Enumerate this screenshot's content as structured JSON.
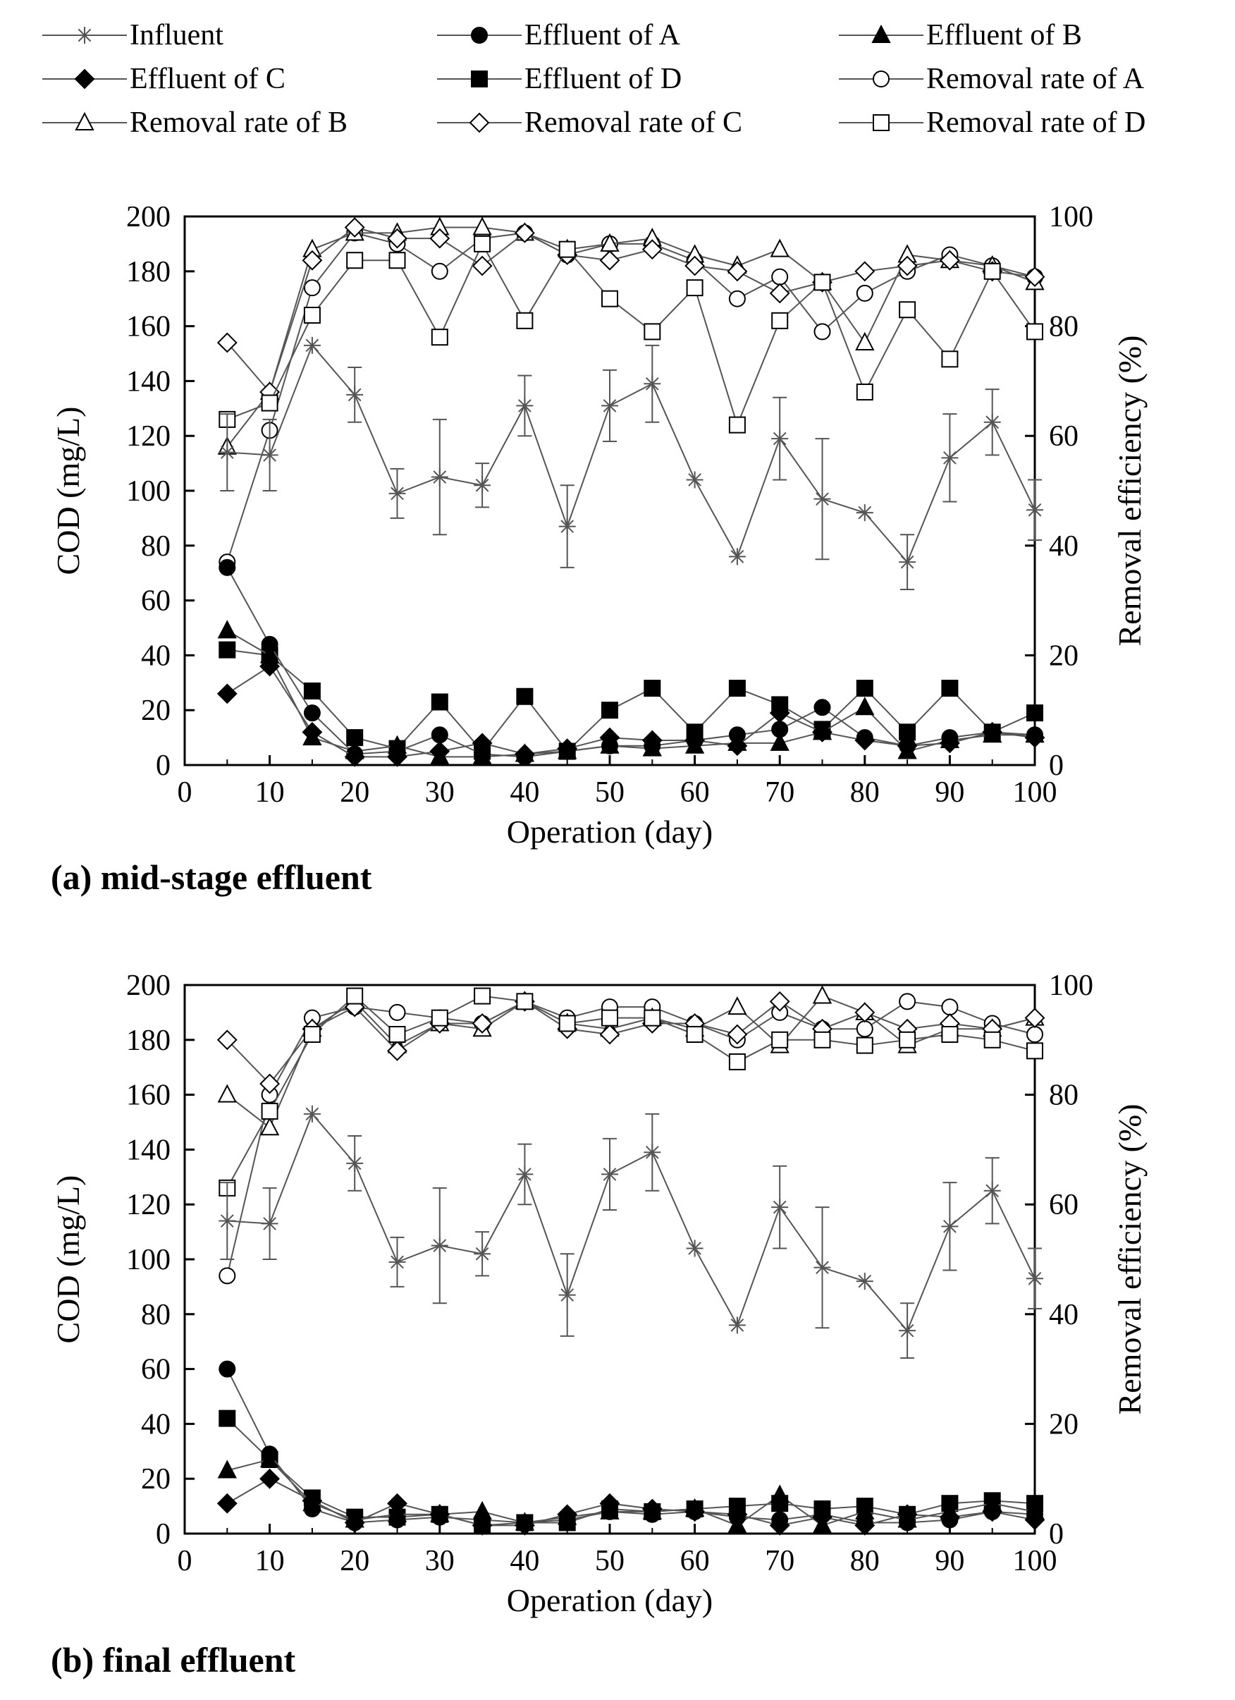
{
  "legend": [
    {
      "key": "influent",
      "label": "Influent",
      "marker": "star",
      "fill": "none"
    },
    {
      "key": "eff_a",
      "label": "Effluent of A",
      "marker": "circle",
      "fill": "#000000"
    },
    {
      "key": "eff_b",
      "label": "Effluent of B",
      "marker": "triangle",
      "fill": "#000000"
    },
    {
      "key": "eff_c",
      "label": "Effluent of C",
      "marker": "diamond",
      "fill": "#000000"
    },
    {
      "key": "eff_d",
      "label": "Effluent of D",
      "marker": "square",
      "fill": "#000000"
    },
    {
      "key": "rem_a",
      "label": "Removal rate of A",
      "marker": "circle",
      "fill": "#ffffff"
    },
    {
      "key": "rem_b",
      "label": "Removal rate of B",
      "marker": "triangle",
      "fill": "#ffffff"
    },
    {
      "key": "rem_c",
      "label": "Removal rate of C",
      "marker": "diamond",
      "fill": "#ffffff"
    },
    {
      "key": "rem_d",
      "label": "Removal rate of D",
      "marker": "square",
      "fill": "#ffffff"
    }
  ],
  "colors": {
    "line": "#555555",
    "marker": "#000000",
    "axis": "#000000",
    "background": "#ffffff"
  },
  "chart_data": [
    {
      "type": "line",
      "panel_caption": "(a) mid-stage effluent",
      "xlabel": "Operation (day)",
      "ylabel": "COD (mg/L)",
      "y2label": "Removal efficiency (%)",
      "xlim": [
        0,
        100
      ],
      "xticks": [
        0,
        10,
        20,
        30,
        40,
        50,
        60,
        70,
        80,
        90,
        100
      ],
      "ylim": [
        0,
        200
      ],
      "yticks": [
        0,
        20,
        40,
        60,
        80,
        100,
        120,
        140,
        160,
        180,
        200
      ],
      "y2lim": [
        0,
        100
      ],
      "y2ticks": [
        0,
        20,
        40,
        60,
        80,
        100
      ],
      "x": [
        5,
        10,
        15,
        20,
        25,
        30,
        35,
        40,
        45,
        50,
        55,
        60,
        65,
        70,
        75,
        80,
        85,
        90,
        95,
        100
      ],
      "series": [
        {
          "key": "influent",
          "name": "Influent",
          "axis": "left",
          "values": [
            114,
            113,
            153,
            135,
            99,
            105,
            102,
            131,
            87,
            131,
            139,
            104,
            76,
            119,
            97,
            92,
            74,
            112,
            125,
            93
          ],
          "errors": [
            14,
            13,
            0,
            10,
            9,
            21,
            8,
            11,
            15,
            13,
            14,
            0,
            0,
            15,
            22,
            0,
            10,
            16,
            12,
            11
          ]
        },
        {
          "key": "eff_a",
          "name": "Effluent of A",
          "axis": "left",
          "values": [
            72,
            44,
            19,
            4,
            5,
            11,
            4,
            3,
            5,
            7,
            7,
            9,
            11,
            13,
            21,
            10,
            7,
            10,
            12,
            11
          ]
        },
        {
          "key": "eff_b",
          "name": "Effluent of B",
          "axis": "left",
          "values": [
            49,
            40,
            10,
            5,
            7,
            3,
            3,
            4,
            5,
            7,
            6,
            7,
            8,
            8,
            12,
            21,
            5,
            9,
            11,
            11
          ]
        },
        {
          "key": "eff_c",
          "name": "Effluent of C",
          "axis": "left",
          "values": [
            26,
            36,
            12,
            3,
            3,
            5,
            8,
            4,
            6,
            10,
            9,
            9,
            7,
            19,
            12,
            9,
            7,
            8,
            12,
            10
          ]
        },
        {
          "key": "eff_d",
          "name": "Effluent of D",
          "axis": "left",
          "values": [
            42,
            40,
            27,
            10,
            6,
            23,
            5,
            25,
            5,
            20,
            28,
            12,
            28,
            22,
            13,
            28,
            12,
            28,
            12,
            19
          ]
        },
        {
          "key": "rem_a",
          "name": "Removal rate of A",
          "axis": "right",
          "values": [
            37,
            61,
            87,
            97,
            95,
            90,
            96,
            97,
            93,
            95,
            95,
            92,
            85,
            89,
            79,
            86,
            90,
            93,
            91,
            89
          ]
        },
        {
          "key": "rem_b",
          "name": "Removal rate of B",
          "axis": "right",
          "values": [
            58,
            68,
            94,
            97,
            97,
            98,
            98,
            97,
            94,
            95,
            96,
            93,
            91,
            94,
            88,
            77,
            93,
            92,
            91,
            88
          ]
        },
        {
          "key": "rem_c",
          "name": "Removal rate of C",
          "axis": "right",
          "values": [
            77,
            68,
            92,
            98,
            96,
            96,
            91,
            97,
            93,
            92,
            94,
            91,
            90,
            86,
            88,
            90,
            91,
            92,
            90,
            89
          ]
        },
        {
          "key": "rem_d",
          "name": "Removal rate of D",
          "axis": "right",
          "values": [
            63,
            66,
            82,
            92,
            92,
            78,
            95,
            81,
            94,
            85,
            79,
            87,
            62,
            81,
            88,
            68,
            83,
            74,
            90,
            79
          ]
        }
      ]
    },
    {
      "type": "line",
      "panel_caption": "(b) final effluent",
      "xlabel": "Operation (day)",
      "ylabel": "COD (mg/L)",
      "y2label": "Removal efficiency (%)",
      "xlim": [
        0,
        100
      ],
      "xticks": [
        0,
        10,
        20,
        30,
        40,
        50,
        60,
        70,
        80,
        90,
        100
      ],
      "ylim": [
        0,
        200
      ],
      "yticks": [
        0,
        20,
        40,
        60,
        80,
        100,
        120,
        140,
        160,
        180,
        200
      ],
      "y2lim": [
        0,
        100
      ],
      "y2ticks": [
        0,
        20,
        40,
        60,
        80,
        100
      ],
      "x": [
        5,
        10,
        15,
        20,
        25,
        30,
        35,
        40,
        45,
        50,
        55,
        60,
        65,
        70,
        75,
        80,
        85,
        90,
        95,
        100
      ],
      "series": [
        {
          "key": "influent",
          "name": "Influent",
          "axis": "left",
          "values": [
            114,
            113,
            153,
            135,
            99,
            105,
            102,
            131,
            87,
            131,
            139,
            104,
            76,
            119,
            97,
            92,
            74,
            112,
            125,
            93
          ],
          "errors": [
            14,
            13,
            0,
            10,
            9,
            21,
            8,
            11,
            15,
            13,
            14,
            0,
            0,
            15,
            22,
            0,
            10,
            16,
            12,
            11
          ]
        },
        {
          "key": "eff_a",
          "name": "Effluent of A",
          "axis": "left",
          "values": [
            60,
            29,
            9,
            4,
            5,
            6,
            5,
            4,
            5,
            8,
            7,
            8,
            6,
            5,
            7,
            4,
            4,
            5,
            8,
            7
          ]
        },
        {
          "key": "eff_b",
          "name": "Effluent of B",
          "axis": "left",
          "values": [
            23,
            27,
            11,
            5,
            7,
            7,
            8,
            4,
            6,
            8,
            8,
            9,
            3,
            14,
            3,
            8,
            5,
            8,
            11,
            8
          ]
        },
        {
          "key": "eff_c",
          "name": "Effluent of C",
          "axis": "left",
          "values": [
            11,
            20,
            12,
            4,
            11,
            7,
            3,
            3,
            7,
            11,
            9,
            8,
            7,
            3,
            6,
            3,
            7,
            6,
            8,
            5
          ]
        },
        {
          "key": "eff_d",
          "name": "Effluent of D",
          "axis": "left",
          "values": [
            42,
            27,
            13,
            6,
            6,
            7,
            3,
            4,
            4,
            9,
            8,
            9,
            10,
            11,
            9,
            10,
            7,
            11,
            12,
            11
          ]
        },
        {
          "key": "rem_a",
          "name": "Removal rate of A",
          "axis": "right",
          "values": [
            47,
            80,
            94,
            96,
            95,
            94,
            93,
            97,
            94,
            96,
            96,
            93,
            90,
            95,
            92,
            92,
            97,
            96,
            93,
            91
          ]
        },
        {
          "key": "rem_b",
          "name": "Removal rate of B",
          "axis": "right",
          "values": [
            80,
            74,
            92,
            97,
            89,
            93,
            92,
            97,
            93,
            92,
            94,
            92,
            96,
            89,
            98,
            95,
            89,
            92,
            92,
            94
          ]
        },
        {
          "key": "rem_c",
          "name": "Removal rate of C",
          "axis": "right",
          "values": [
            90,
            82,
            92,
            96,
            88,
            93,
            93,
            97,
            92,
            91,
            93,
            93,
            91,
            97,
            92,
            95,
            92,
            93,
            92,
            94
          ]
        },
        {
          "key": "rem_d",
          "name": "Removal rate of D",
          "axis": "right",
          "values": [
            63,
            77,
            91,
            98,
            91,
            94,
            98,
            97,
            93,
            94,
            94,
            91,
            86,
            90,
            90,
            89,
            90,
            91,
            90,
            88
          ]
        }
      ]
    }
  ]
}
